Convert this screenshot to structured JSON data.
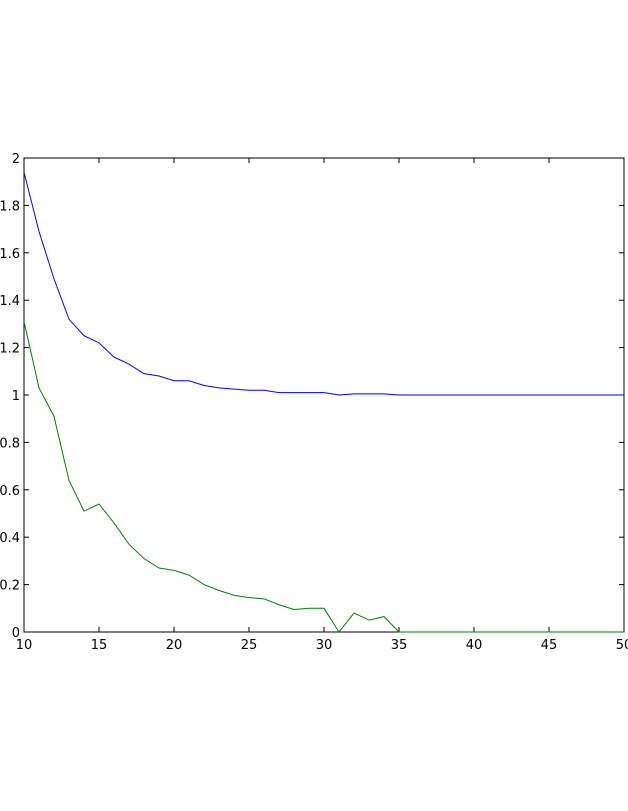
{
  "chart_data": {
    "type": "line",
    "x": [
      10,
      11,
      12,
      13,
      14,
      15,
      16,
      17,
      18,
      19,
      20,
      21,
      22,
      23,
      24,
      25,
      26,
      27,
      28,
      29,
      30,
      31,
      32,
      33,
      34,
      35,
      36,
      37,
      38,
      39,
      40,
      41,
      42,
      43,
      44,
      45,
      46,
      47,
      48,
      49,
      50
    ],
    "series": [
      {
        "color": "#0000ff",
        "values": [
          1.94,
          1.69,
          1.49,
          1.32,
          1.25,
          1.22,
          1.16,
          1.13,
          1.09,
          1.08,
          1.06,
          1.06,
          1.04,
          1.03,
          1.025,
          1.02,
          1.02,
          1.01,
          1.01,
          1.01,
          1.01,
          1.0,
          1.005,
          1.005,
          1.005,
          1.0,
          1.0,
          1.0,
          1.0,
          1.0,
          1.0,
          1.0,
          1.0,
          1.0,
          1.0,
          1.0,
          1.0,
          1.0,
          1.0,
          1.0,
          1.0
        ]
      },
      {
        "color": "#008000",
        "values": [
          1.31,
          1.03,
          0.91,
          0.64,
          0.51,
          0.54,
          0.46,
          0.37,
          0.31,
          0.27,
          0.26,
          0.24,
          0.2,
          0.175,
          0.155,
          0.145,
          0.14,
          0.115,
          0.095,
          0.1,
          0.1,
          0.0,
          0.08,
          0.05,
          0.065,
          0.0,
          0.0,
          0.0,
          0.0,
          0.0,
          0.0,
          0.0,
          0.0,
          0.0,
          0.0,
          0.0,
          0.0,
          0.0,
          0.0,
          0.0,
          0.0
        ]
      }
    ],
    "xlim": [
      10,
      50
    ],
    "xticks": [
      10,
      15,
      20,
      25,
      30,
      35,
      40,
      45,
      50
    ],
    "ylim": [
      0,
      2
    ],
    "yticks": [
      0,
      0.2,
      0.4,
      0.6,
      0.8,
      1,
      1.2,
      1.4,
      1.6,
      1.8,
      2
    ]
  }
}
